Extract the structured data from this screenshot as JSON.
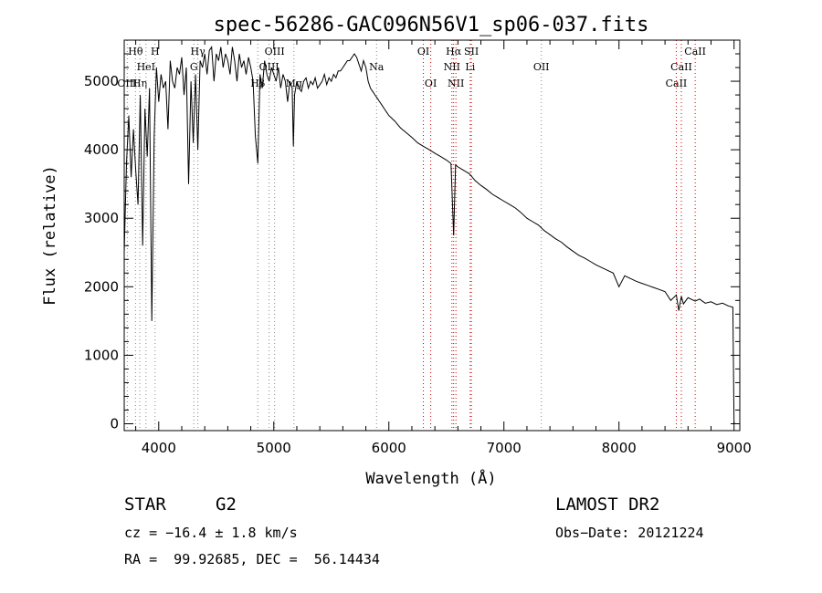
{
  "chart_data": {
    "type": "line",
    "title": "spec-56286-GAC096N56V1_sp06-037.fits",
    "xlabel": "Wavelength (Å)",
    "ylabel": "Flux (relative)",
    "xlim": [
      3700,
      9050
    ],
    "ylim": [
      -100,
      5600
    ],
    "xticks": [
      4000,
      5000,
      6000,
      7000,
      8000,
      9000
    ],
    "yticks": [
      0,
      1000,
      2000,
      3000,
      4000,
      5000
    ],
    "grid": false,
    "series": [
      {
        "x": [
          3700,
          3720,
          3740,
          3760,
          3780,
          3800,
          3820,
          3840,
          3860,
          3880,
          3900,
          3920,
          3940,
          3960,
          3980,
          4000,
          4020,
          4040,
          4060,
          4080,
          4100,
          4120,
          4140,
          4160,
          4180,
          4200,
          4220,
          4240,
          4260,
          4280,
          4300,
          4320,
          4340,
          4360,
          4380,
          4400,
          4420,
          4440,
          4460,
          4480,
          4500,
          4520,
          4540,
          4560,
          4580,
          4600,
          4620,
          4640,
          4660,
          4680,
          4700,
          4720,
          4740,
          4760,
          4780,
          4800,
          4820,
          4840,
          4861,
          4880,
          4900,
          4920,
          4940,
          4960,
          4980,
          5000,
          5020,
          5040,
          5060,
          5080,
          5100,
          5120,
          5140,
          5160,
          5170,
          5180,
          5200,
          5220,
          5240,
          5260,
          5280,
          5300,
          5320,
          5340,
          5360,
          5380,
          5400,
          5420,
          5440,
          5460,
          5480,
          5500,
          5520,
          5540,
          5560,
          5580,
          5600,
          5620,
          5640,
          5660,
          5680,
          5700,
          5720,
          5740,
          5760,
          5780,
          5800,
          5820,
          5840,
          5860,
          5880,
          5900,
          5920,
          5940,
          5960,
          5980,
          6000,
          6050,
          6100,
          6150,
          6200,
          6250,
          6300,
          6350,
          6400,
          6450,
          6500,
          6540,
          6563,
          6580,
          6600,
          6650,
          6700,
          6750,
          6800,
          6850,
          6900,
          6950,
          7000,
          7050,
          7100,
          7150,
          7200,
          7250,
          7300,
          7350,
          7400,
          7450,
          7500,
          7550,
          7600,
          7650,
          7700,
          7750,
          7800,
          7850,
          7900,
          7950,
          8000,
          8050,
          8100,
          8150,
          8200,
          8250,
          8300,
          8350,
          8400,
          8450,
          8498,
          8520,
          8542,
          8560,
          8600,
          8662,
          8700,
          8750,
          8800,
          8850,
          8900,
          8950,
          8990,
          9000
        ],
        "y": [
          2500,
          3800,
          4500,
          3600,
          4300,
          3700,
          3200,
          4800,
          2600,
          4600,
          3900,
          4900,
          1500,
          4200,
          5200,
          4700,
          5100,
          4900,
          5000,
          4300,
          5300,
          5000,
          4900,
          5200,
          5100,
          5350,
          4800,
          5200,
          3500,
          5000,
          4100,
          5100,
          4000,
          5300,
          5200,
          5400,
          5100,
          5450,
          5500,
          5000,
          5400,
          5300,
          5500,
          5200,
          5400,
          5300,
          5100,
          5500,
          5300,
          5000,
          5400,
          5200,
          5300,
          5100,
          5350,
          5200,
          5000,
          4200,
          3800,
          5100,
          4900,
          5300,
          5100,
          5000,
          5200,
          5100,
          5000,
          5200,
          4900,
          5100,
          5000,
          4700,
          5000,
          4900,
          4050,
          4800,
          5000,
          4900,
          4850,
          5000,
          5050,
          4900,
          5000,
          4950,
          5050,
          4900,
          4950,
          5000,
          5100,
          4950,
          5050,
          5000,
          5100,
          5050,
          5150,
          5150,
          5200,
          5250,
          5300,
          5300,
          5350,
          5400,
          5350,
          5250,
          5150,
          5300,
          5200,
          5000,
          4900,
          4850,
          4800,
          4750,
          4700,
          4650,
          4600,
          4550,
          4500,
          4420,
          4320,
          4250,
          4180,
          4100,
          4050,
          4000,
          3950,
          3900,
          3850,
          3800,
          2750,
          3780,
          3750,
          3700,
          3650,
          3550,
          3480,
          3420,
          3350,
          3300,
          3250,
          3200,
          3150,
          3080,
          3000,
          2950,
          2900,
          2820,
          2760,
          2700,
          2650,
          2580,
          2520,
          2460,
          2420,
          2370,
          2320,
          2280,
          2240,
          2200,
          2000,
          2160,
          2120,
          2080,
          2050,
          2020,
          1990,
          1960,
          1930,
          1800,
          1880,
          1650,
          1860,
          1750,
          1840,
          1790,
          1820,
          1760,
          1780,
          1740,
          1760,
          1720,
          1700,
          0
        ]
      }
    ],
    "line_markers": [
      {
        "label": "Hθ",
        "wl": 3798,
        "row": 0,
        "color": "#888888"
      },
      {
        "label": "OIII",
        "wl": 3727,
        "row": 2,
        "color": "#888888"
      },
      {
        "label": "Hη",
        "wl": 3835,
        "row": 2,
        "color": "#888888"
      },
      {
        "label": "H",
        "wl": 3968,
        "row": 0,
        "color": "#888888"
      },
      {
        "label": "HeI",
        "wl": 3889,
        "row": 1,
        "color": "#888888"
      },
      {
        "label": "Hγ",
        "wl": 4340,
        "row": 0,
        "color": "#888888"
      },
      {
        "label": "G",
        "wl": 4305,
        "row": 1,
        "color": "#888888"
      },
      {
        "label": "OIII",
        "wl": 5007,
        "row": 0,
        "color": "#888888"
      },
      {
        "label": "OIII",
        "wl": 4959,
        "row": 1,
        "color": "#888888"
      },
      {
        "label": "Hβ",
        "wl": 4861,
        "row": 2,
        "color": "#888888"
      },
      {
        "label": "Mg",
        "wl": 5175,
        "row": 2,
        "color": "#888888"
      },
      {
        "label": "Na",
        "wl": 5893,
        "row": 1,
        "color": "#888888"
      },
      {
        "label": "OI",
        "wl": 6300,
        "row": 0,
        "color": "#cc0000"
      },
      {
        "label": "OI",
        "wl": 6364,
        "row": 2,
        "color": "#cc0000"
      },
      {
        "label": "Hα",
        "wl": 6563,
        "row": 0,
        "color": "#cc0000"
      },
      {
        "label": "SII",
        "wl": 6717,
        "row": 0,
        "color": "#cc0000"
      },
      {
        "label": "NII",
        "wl": 6548,
        "row": 1,
        "color": "#cc0000"
      },
      {
        "label": "NII",
        "wl": 6583,
        "row": 2,
        "color": "#cc0000"
      },
      {
        "label": "Li",
        "wl": 6707,
        "row": 1,
        "color": "#cc0000"
      },
      {
        "label": "OII",
        "wl": 7325,
        "row": 1,
        "color": "#888888"
      },
      {
        "label": "CaII",
        "wl": 8662,
        "row": 0,
        "color": "#cc0000"
      },
      {
        "label": "CaII",
        "wl": 8542,
        "row": 1,
        "color": "#cc0000"
      },
      {
        "label": "CaII",
        "wl": 8498,
        "row": 2,
        "color": "#cc0000"
      }
    ]
  },
  "info": {
    "class": "STAR",
    "subclass": "G2",
    "survey": "LAMOST DR2",
    "cz": "cz = −16.4 ± 1.8 km/s",
    "obs_date": "Obs−Date: 20121224",
    "coords": "RA =  99.92685, DEC =  56.14434"
  }
}
